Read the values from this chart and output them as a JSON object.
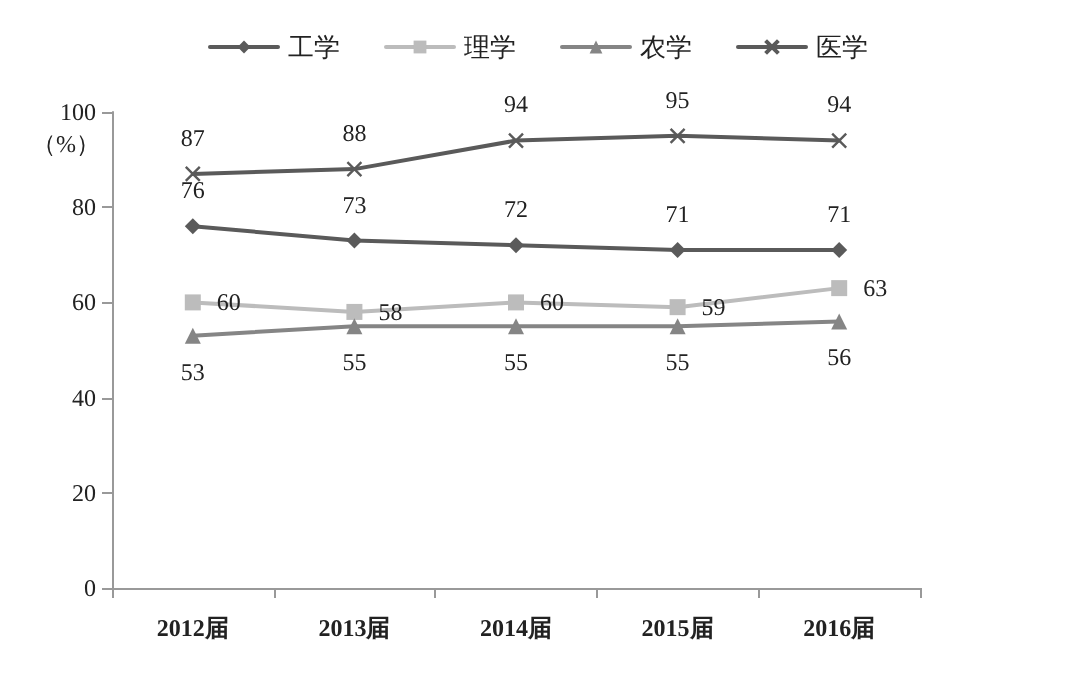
{
  "chart_data": {
    "type": "line",
    "ylabel": "（%）",
    "categories": [
      "2012届",
      "2013届",
      "2014届",
      "2015届",
      "2016届"
    ],
    "series": [
      {
        "name": "工学",
        "color": "#5a5a5a",
        "marker": "diamond",
        "values": [
          76,
          73,
          72,
          71,
          71
        ]
      },
      {
        "name": "理学",
        "color": "#bcbcbc",
        "marker": "square",
        "values": [
          60,
          58,
          60,
          59,
          63
        ]
      },
      {
        "name": "农学",
        "color": "#858585",
        "marker": "triangle",
        "values": [
          53,
          55,
          55,
          55,
          56
        ]
      },
      {
        "name": "医学",
        "color": "#5a5a5a",
        "marker": "cross",
        "values": [
          87,
          88,
          94,
          95,
          94
        ]
      }
    ],
    "ylim": [
      0,
      100
    ],
    "yticks": [
      0,
      20,
      40,
      60,
      80,
      100
    ],
    "grid": false,
    "legend": "top",
    "data_labels": true,
    "line_style": "solid"
  }
}
